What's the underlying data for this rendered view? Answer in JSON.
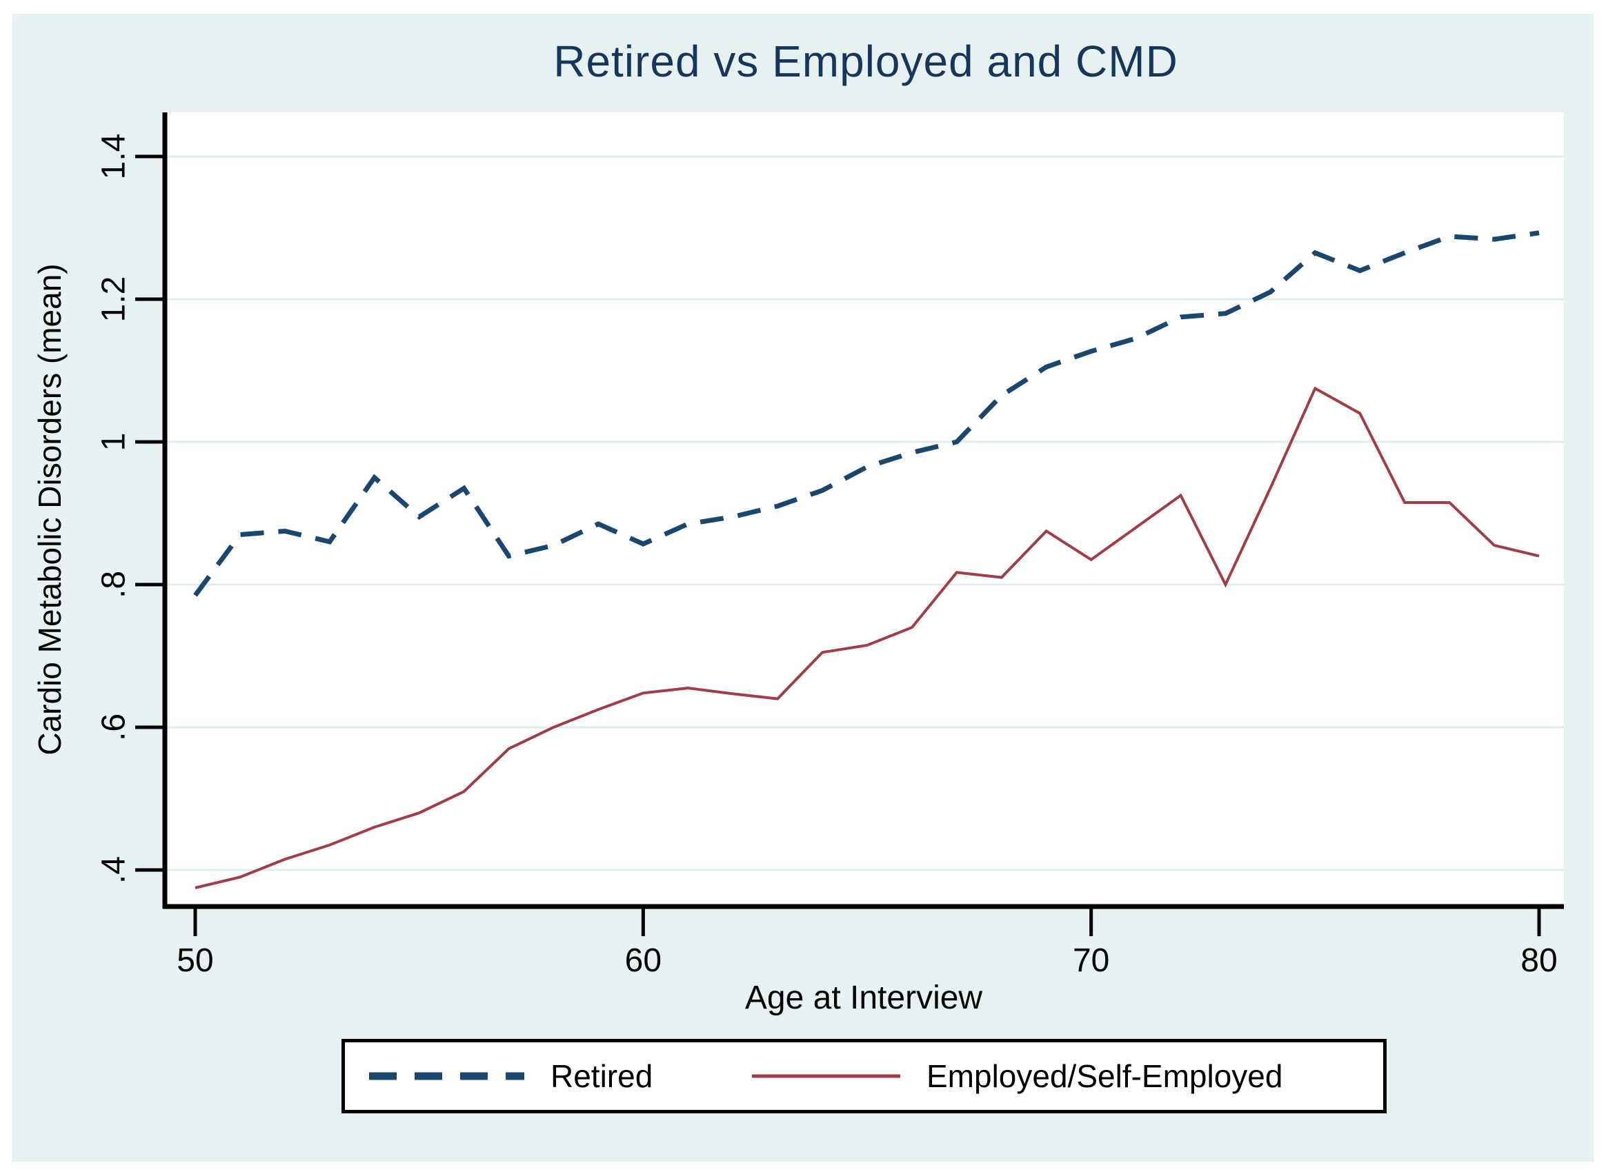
{
  "chart_data": {
    "type": "line",
    "title": "Retired vs Employed and CMD",
    "xlabel": "Age at Interview",
    "ylabel": "Cardio Metabolic Disorders (mean)",
    "grid": "horizontal",
    "legend_position": "bottom",
    "xlim": [
      49.3,
      80.6
    ],
    "ylim": [
      0.35,
      1.46
    ],
    "x_ticks": [
      {
        "value": 50,
        "label": "50"
      },
      {
        "value": 60,
        "label": "60"
      },
      {
        "value": 70,
        "label": "70"
      },
      {
        "value": 80,
        "label": "80"
      }
    ],
    "y_ticks": [
      {
        "value": 1.4,
        "label": "1.4"
      },
      {
        "value": 1.2,
        "label": "1.2"
      },
      {
        "value": 1.0,
        "label": "1"
      },
      {
        "value": 0.8,
        "label": ".8"
      },
      {
        "value": 0.6,
        "label": ".6"
      },
      {
        "value": 0.4,
        "label": ".4"
      }
    ],
    "x": [
      50,
      51,
      52,
      53,
      54,
      55,
      56,
      57,
      58,
      59,
      60,
      61,
      62,
      63,
      64,
      65,
      66,
      67,
      68,
      69,
      70,
      71,
      72,
      73,
      74,
      75,
      76,
      77,
      78,
      79,
      80
    ],
    "series": [
      {
        "name": "Retired",
        "color": "#1a476f",
        "style": "dashed",
        "values": [
          0.785,
          0.87,
          0.875,
          0.86,
          0.95,
          0.895,
          0.935,
          0.84,
          0.855,
          0.885,
          0.857,
          0.885,
          0.895,
          0.91,
          0.932,
          0.965,
          0.985,
          1.0,
          1.065,
          1.105,
          1.127,
          1.145,
          1.175,
          1.18,
          1.21,
          1.265,
          1.24,
          1.265,
          1.288,
          1.284,
          1.293
        ]
      },
      {
        "name": "Employed/Self-Employed",
        "color": "#a23c45",
        "style": "solid",
        "values": [
          0.375,
          0.39,
          0.415,
          0.435,
          0.46,
          0.48,
          0.51,
          0.57,
          0.6,
          0.625,
          0.648,
          0.655,
          0.647,
          0.64,
          0.705,
          0.715,
          0.74,
          0.817,
          0.81,
          0.875,
          0.835,
          0.88,
          0.925,
          0.8,
          0.935,
          1.075,
          1.04,
          0.915,
          0.915,
          0.855,
          0.84
        ]
      }
    ],
    "colors": {
      "background": "#e8f1f2",
      "plot_background": "#ffffff",
      "gridline": "#dceef0",
      "axis": "#000000",
      "title_text": "#17365c"
    }
  }
}
